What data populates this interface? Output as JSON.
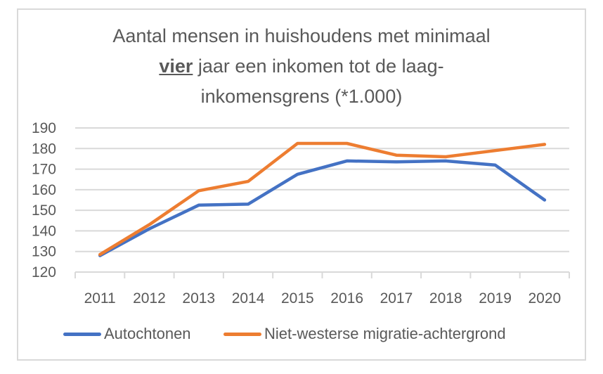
{
  "chart_data": {
    "type": "line",
    "title_parts": [
      "Aantal mensen in huishoudens met minimaal",
      "vier",
      "jaar een inkomen tot de laag-",
      "inkomensgrens (*1.000)"
    ],
    "title": "Aantal mensen in huishoudens met minimaal vier jaar een inkomen tot de laag-inkomensgrens (*1.000)",
    "categories": [
      "2011",
      "2012",
      "2013",
      "2014",
      "2015",
      "2016",
      "2017",
      "2018",
      "2019",
      "2020"
    ],
    "ylim": [
      120,
      190
    ],
    "yticks": [
      "120",
      "130",
      "140",
      "150",
      "160",
      "170",
      "180",
      "190"
    ],
    "grid": true,
    "legend_position": "bottom",
    "series": [
      {
        "name": "Autochtonen",
        "color": "#4472c4",
        "values": [
          128,
          141,
          152.5,
          153,
          167.5,
          174,
          173.5,
          174,
          172,
          155
        ]
      },
      {
        "name": "Niet-westerse migratie-achtergrond",
        "color": "#ed7d31",
        "values": [
          128.5,
          143,
          159.5,
          164,
          182.5,
          182.5,
          176.8,
          176,
          179,
          182
        ]
      }
    ]
  }
}
